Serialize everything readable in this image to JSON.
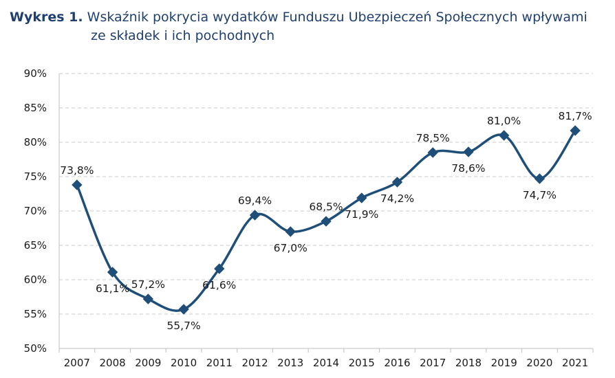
{
  "header": {
    "prefix": "Wykres 1.",
    "title_line1": "Wskaźnik pokrycia wydatków Funduszu Ubezpieczeń Społecznych wpływami",
    "title_line2": "ze składek i ich pochodnych"
  },
  "colors": {
    "title": "#1f3f6e",
    "series": "#1f4e79",
    "grid": "#c8c8c8",
    "axis": "#bfbfbf"
  },
  "chart_data": {
    "type": "line",
    "title": "Wykres 1. Wskaźnik pokrycia wydatków Funduszu Ubezpieczeń Społecznych wpływami ze składek i ich pochodnych",
    "xlabel": "",
    "ylabel": "",
    "categories": [
      "2007",
      "2008",
      "2009",
      "2010",
      "2011",
      "2012",
      "2013",
      "2014",
      "2015",
      "2016",
      "2017",
      "2018",
      "2019",
      "2020",
      "2021"
    ],
    "series": [
      {
        "values": [
          73.8,
          61.1,
          57.2,
          55.7,
          61.6,
          69.4,
          67.0,
          68.5,
          71.9,
          74.2,
          78.5,
          78.6,
          81.0,
          74.7,
          81.7
        ],
        "labels": [
          "73,8%",
          "61,1%",
          "57,2%",
          "55,7%",
          "61,6%",
          "69,4%",
          "67,0%",
          "68,5%",
          "71,9%",
          "74,2%",
          "78,5%",
          "78,6%",
          "81,0%",
          "74,7%",
          "81,7%"
        ],
        "label_positions": [
          "above",
          "below",
          "above",
          "below",
          "below",
          "above",
          "below",
          "above",
          "below",
          "below",
          "above",
          "below",
          "above",
          "below",
          "above"
        ]
      }
    ],
    "ylim": [
      50,
      90
    ],
    "yticks": [
      50,
      55,
      60,
      65,
      70,
      75,
      80,
      85,
      90
    ],
    "ytick_labels": [
      "50%",
      "55%",
      "60%",
      "65%",
      "70%",
      "75%",
      "80%",
      "85%",
      "90%"
    ],
    "grid": true,
    "grid_style": "dashed",
    "line_style": "smooth",
    "marker": "diamond",
    "legend": "none"
  }
}
